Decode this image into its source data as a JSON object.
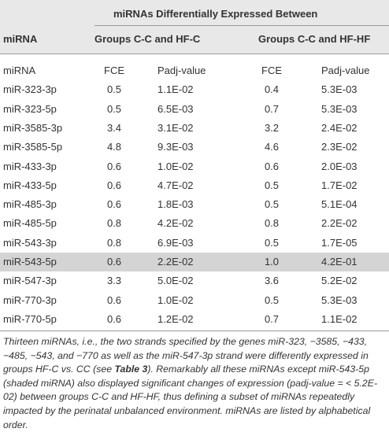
{
  "header": {
    "title": "miRNAs Differentially Expressed Between",
    "columns": [
      "miRNA",
      "Groups C-C and HF-C",
      "Groups C-C and HF-HF"
    ]
  },
  "table": {
    "header": [
      "miRNA",
      "FCE",
      "Padj-value",
      "FCE",
      "Padj-value"
    ],
    "highlight_row": 9,
    "rows": [
      [
        "miR-323-3p",
        "0.5",
        "1.1E-02",
        "0.4",
        "5.3E-03"
      ],
      [
        "miR-323-5p",
        "0.5",
        "6.5E-03",
        "0.7",
        "5.3E-03"
      ],
      [
        "miR-3585-3p",
        "3.4",
        "3.1E-02",
        "3.2",
        "2.4E-02"
      ],
      [
        "miR-3585-5p",
        "4.8",
        "9.3E-03",
        "4.6",
        "2.3E-02"
      ],
      [
        "miR-433-3p",
        "0.6",
        "1.0E-02",
        "0.6",
        "2.0E-03"
      ],
      [
        "miR-433-5p",
        "0.6",
        "4.7E-02",
        "0.5",
        "1.7E-02"
      ],
      [
        "miR-485-3p",
        "0.6",
        "1.8E-03",
        "0.5",
        "5.1E-04"
      ],
      [
        "miR-485-5p",
        "0.8",
        "4.2E-02",
        "0.8",
        "2.2E-02"
      ],
      [
        "miR-543-3p",
        "0.8",
        "6.9E-03",
        "0.5",
        "1.7E-05"
      ],
      [
        "miR-543-5p",
        "0.6",
        "2.2E-02",
        "1.0",
        "4.2E-01"
      ],
      [
        "miR-547-3p",
        "3.3",
        "5.0E-02",
        "3.6",
        "5.2E-02"
      ],
      [
        "miR-770-3p",
        "0.6",
        "1.0E-02",
        "0.5",
        "5.3E-03"
      ],
      [
        "miR-770-5p",
        "0.6",
        "1.2E-02",
        "0.7",
        "1.1E-02"
      ]
    ]
  },
  "footnote": [
    {
      "text": "Thirteen miRNAs, i.e., the two strands specified by the genes miR-323, −3585, −433, −485, −543, and −770 as well as the miR-547-3p strand were differently expressed in groups HF-C vs. CC (see ",
      "bold": false
    },
    {
      "text": "Table 3",
      "bold": true
    },
    {
      "text": "). Remarkably all these miRNAs except miR-543-5p (shaded miRNA) also displayed significant changes of expression (padj-value = < 5.2E-02) between groups C-C and HF-HF, thus defining a subset of miRNAs repeatedly impacted by the perinatal unbalanced environment. miRNAs are listed by alphabetical order.",
      "bold": false
    }
  ]
}
